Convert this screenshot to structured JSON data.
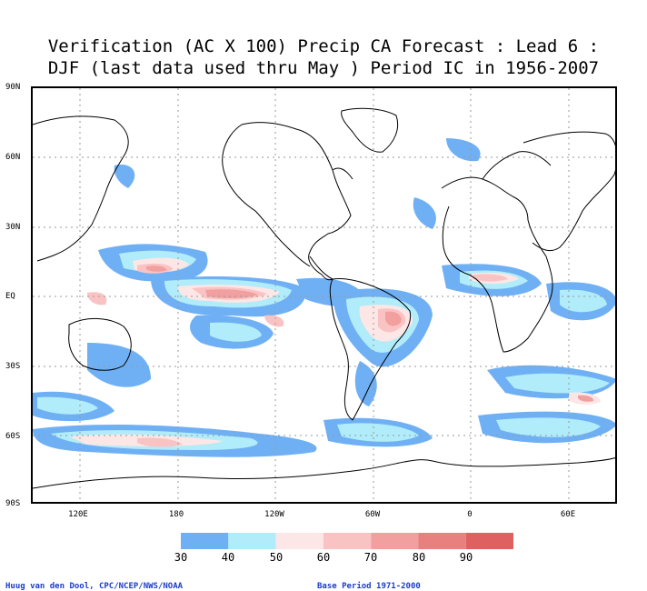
{
  "title_line1": "Verification (AC X 100) Precip CA Forecast : Lead 6 :",
  "title_line2": "DJF (last data used thru May ) Period IC in 1956-2007",
  "lat_labels": [
    "90N",
    "60N",
    "30N",
    "EQ",
    "30S",
    "60S",
    "90S"
  ],
  "lon_labels": [
    "120E",
    "180",
    "120W",
    "60W",
    "0",
    "60E"
  ],
  "colorbar": {
    "labels": [
      "30",
      "40",
      "50",
      "60",
      "70",
      "80",
      "90"
    ],
    "colors": [
      "#6fb0f5",
      "#b0ecf9",
      "#fde6e6",
      "#fac3c3",
      "#f29f9f",
      "#e88080",
      "#df6060"
    ]
  },
  "credit_left": "Huug van den Dool, CPC/NCEP/NWS/NOAA",
  "credit_right": "Base Period 1971-2000"
}
